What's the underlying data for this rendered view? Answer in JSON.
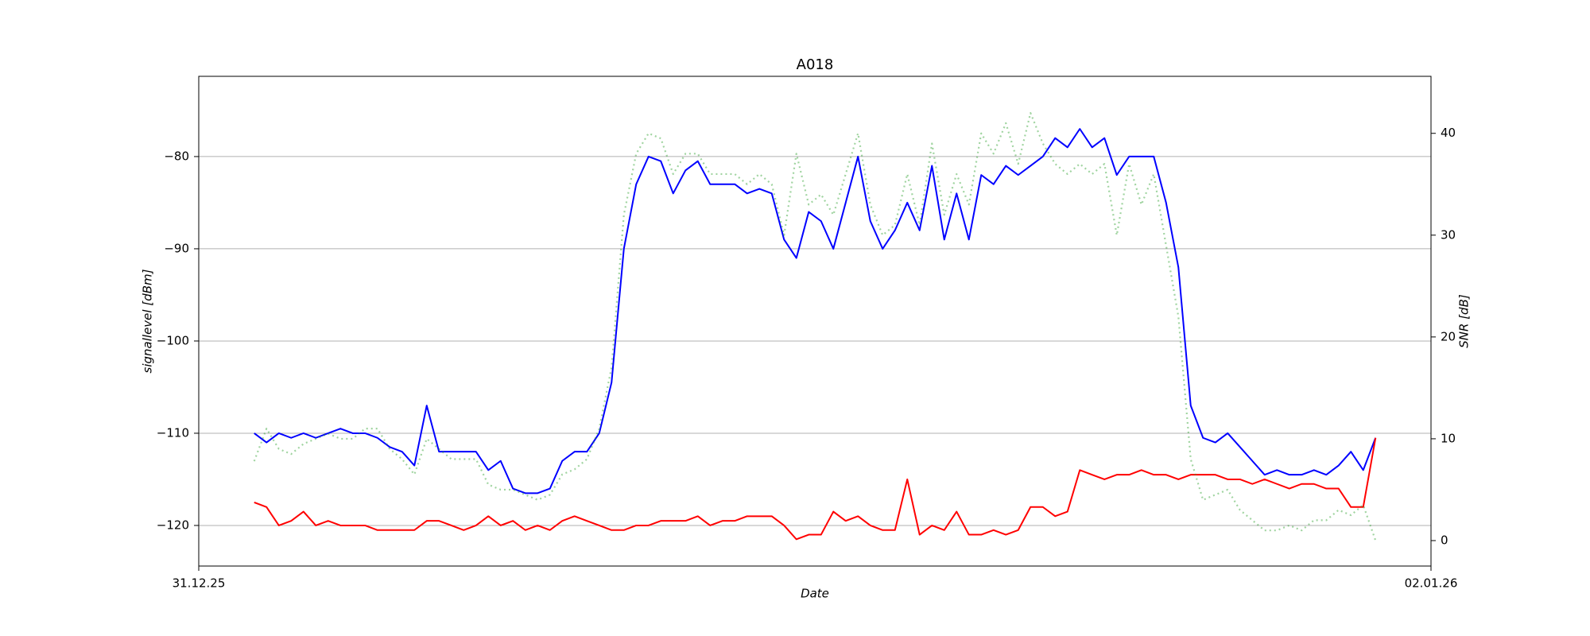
{
  "chart_data": {
    "type": "line",
    "title": "A018",
    "x_label": "Date",
    "y_label": "signallevel [dBm]",
    "y2_label": "SNR [dB]",
    "xlim": [
      0,
      2
    ],
    "xticks": [
      {
        "value": 0,
        "label": "31.12.25"
      },
      {
        "value": 2,
        "label": "02.01.26"
      }
    ],
    "ylim": [
      -124.4,
      -71.3
    ],
    "yticks": [
      {
        "value": -120,
        "label": "−120"
      },
      {
        "value": -110,
        "label": "−110"
      },
      {
        "value": -100,
        "label": "−100"
      },
      {
        "value": -90,
        "label": "−90"
      },
      {
        "value": -80,
        "label": "−80"
      }
    ],
    "y2lim": [
      -2.5,
      45.6
    ],
    "y2ticks": [
      0,
      10,
      20,
      30,
      40
    ],
    "grid": true,
    "x": [
      0.09,
      0.11,
      0.13,
      0.15,
      0.17,
      0.19,
      0.21,
      0.23,
      0.25,
      0.27,
      0.29,
      0.31,
      0.33,
      0.35,
      0.37,
      0.39,
      0.41,
      0.43,
      0.45,
      0.47,
      0.49,
      0.51,
      0.53,
      0.55,
      0.57,
      0.59,
      0.61,
      0.63,
      0.65,
      0.67,
      0.69,
      0.71,
      0.73,
      0.75,
      0.77,
      0.79,
      0.81,
      0.83,
      0.85,
      0.87,
      0.89,
      0.91,
      0.93,
      0.95,
      0.97,
      0.99,
      1.01,
      1.03,
      1.05,
      1.07,
      1.09,
      1.11,
      1.13,
      1.15,
      1.17,
      1.19,
      1.21,
      1.23,
      1.25,
      1.27,
      1.29,
      1.31,
      1.33,
      1.35,
      1.37,
      1.39,
      1.41,
      1.43,
      1.45,
      1.47,
      1.49,
      1.51,
      1.53,
      1.55,
      1.57,
      1.59,
      1.61,
      1.63,
      1.65,
      1.67,
      1.69,
      1.71,
      1.73,
      1.75,
      1.77,
      1.79,
      1.81,
      1.83,
      1.85,
      1.87,
      1.89,
      1.91
    ],
    "series": [
      {
        "color": "#0000ff",
        "axis": "y",
        "linestyle": "solid",
        "alpha": 1,
        "values": [
          -110,
          -111,
          -110,
          -110.5,
          -110,
          -110.5,
          -110,
          -109.5,
          -110,
          -110,
          -110.5,
          -111.5,
          -112,
          -113.5,
          -107,
          -112,
          -112,
          -112,
          -112,
          -114,
          -113,
          -116,
          -116.5,
          -116.5,
          -116,
          -113,
          -112,
          -112,
          -110,
          -104.5,
          -90,
          -83,
          -80,
          -80.5,
          -84,
          -81.5,
          -80.5,
          -83,
          -83,
          -83,
          -84,
          -83.5,
          -84,
          -89,
          -91,
          -86,
          -87,
          -90,
          -85,
          -80,
          -87,
          -90,
          -88,
          -85,
          -88,
          -81,
          -89,
          -84,
          -89,
          -82,
          -83,
          -81,
          -82,
          -81,
          -80,
          -78,
          -79,
          -77,
          -79,
          -78,
          -82,
          -80,
          -80,
          -80,
          -85,
          -92,
          -107,
          -110.5,
          -111,
          -110,
          -111.5,
          -113,
          -114.5,
          -114,
          -114.5,
          -114.5,
          -114,
          -114.5,
          -113.5,
          -112,
          -114,
          -110.5
        ]
      },
      {
        "color": "#ff0000",
        "axis": "y",
        "linestyle": "solid",
        "alpha": 1,
        "values": [
          -117.5,
          -118,
          -120,
          -119.5,
          -118.5,
          -120,
          -119.5,
          -120,
          -120,
          -120,
          -120.5,
          -120.5,
          -120.5,
          -120.5,
          -119.5,
          -119.5,
          -120,
          -120.5,
          -120,
          -119,
          -120,
          -119.5,
          -120.5,
          -120,
          -120.5,
          -119.5,
          -119,
          -119.5,
          -120,
          -120.5,
          -120.5,
          -120,
          -120,
          -119.5,
          -119.5,
          -119.5,
          -119,
          -120,
          -119.5,
          -119.5,
          -119,
          -119,
          -119,
          -120,
          -121.5,
          -121,
          -121,
          -118.5,
          -119.5,
          -119,
          -120,
          -120.5,
          -120.5,
          -115,
          -121,
          -120,
          -120.5,
          -118.5,
          -121,
          -121,
          -120.5,
          -121,
          -120.5,
          -118,
          -118,
          -119,
          -118.5,
          -114,
          -114.5,
          -115,
          -114.5,
          -114.5,
          -114,
          -114.5,
          -114.5,
          -115,
          -114.5,
          -114.5,
          -114.5,
          -115,
          -115,
          -115.5,
          -115,
          -115.5,
          -116,
          -115.5,
          -115.5,
          -116,
          -116,
          -118,
          -118,
          -110.5
        ]
      },
      {
        "color": "#2ca02c",
        "axis": "y2",
        "linestyle": "dotted",
        "alpha": 0.45,
        "values": [
          7.8,
          11,
          9,
          8.5,
          9.5,
          10,
          10.5,
          10,
          10,
          11,
          11,
          9,
          8,
          6.5,
          10,
          9,
          8,
          8,
          8,
          5.5,
          5,
          5,
          4.5,
          4,
          4.5,
          6.5,
          7,
          8,
          11,
          17,
          32,
          38,
          40,
          39.5,
          36,
          38,
          38,
          36,
          36,
          36,
          35,
          36,
          35,
          30,
          38,
          33,
          34,
          32,
          36,
          40,
          33,
          30,
          31,
          36,
          31,
          39,
          32,
          36,
          33,
          40,
          38,
          41,
          37,
          42,
          39,
          37,
          36,
          37,
          36,
          37,
          30,
          37,
          33,
          36,
          29,
          22,
          8,
          4,
          4.5,
          5,
          3,
          2,
          1,
          1,
          1.5,
          1,
          2,
          2,
          3,
          2.5,
          3.5,
          0
        ]
      }
    ]
  }
}
